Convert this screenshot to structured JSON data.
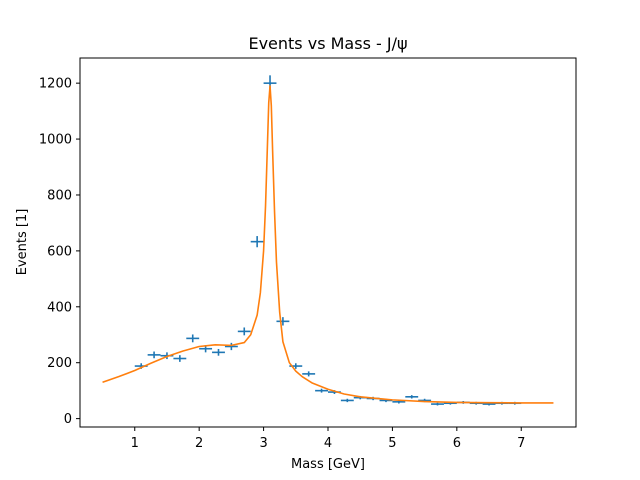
{
  "chart_data": {
    "type": "scatter",
    "title": "Events vs Mass - J/ψ",
    "xlabel": "Mass [GeV]",
    "ylabel": "Events [1]",
    "xlim": [
      0.15,
      7.85
    ],
    "ylim": [
      -30,
      1290
    ],
    "xticks": [
      1,
      2,
      3,
      4,
      5,
      6,
      7
    ],
    "yticks": [
      0,
      200,
      400,
      600,
      800,
      1000,
      1200
    ],
    "grid": false,
    "legend": "none",
    "colors": {
      "data": "#1f77b4",
      "fit": "#ff7f0e"
    },
    "series": [
      {
        "kind": "errorbar",
        "x_halfwidth": 0.1,
        "x": [
          1.1,
          1.3,
          1.5,
          1.7,
          1.9,
          2.1,
          2.3,
          2.5,
          2.7,
          2.9,
          3.1,
          3.3,
          3.5,
          3.7,
          3.9,
          4.1,
          4.3,
          4.5,
          4.7,
          4.9,
          5.1,
          5.3,
          5.5,
          5.7,
          5.9,
          6.1,
          6.3,
          6.5,
          6.7,
          6.9
        ],
        "y": [
          188,
          228,
          225,
          215,
          287,
          250,
          237,
          258,
          312,
          633,
          1200,
          348,
          188,
          160,
          100,
          95,
          65,
          75,
          72,
          65,
          60,
          78,
          65,
          52,
          55,
          58,
          55,
          52,
          55,
          55
        ],
        "yerr": [
          10,
          12,
          12,
          12,
          14,
          13,
          12,
          13,
          14,
          20,
          28,
          15,
          10,
          9,
          7,
          7,
          6,
          6,
          6,
          6,
          6,
          6,
          6,
          5,
          5,
          5,
          5,
          5,
          5,
          5
        ]
      },
      {
        "kind": "line",
        "x": [
          0.5,
          0.75,
          1.0,
          1.25,
          1.5,
          1.75,
          2.0,
          2.25,
          2.5,
          2.7,
          2.8,
          2.9,
          2.95,
          3.0,
          3.03,
          3.06,
          3.08,
          3.1,
          3.12,
          3.14,
          3.17,
          3.2,
          3.25,
          3.3,
          3.4,
          3.5,
          3.6,
          3.75,
          4.0,
          4.25,
          4.5,
          5.0,
          5.5,
          6.0,
          6.5,
          7.0,
          7.5
        ],
        "y": [
          130,
          150,
          172,
          198,
          222,
          242,
          258,
          264,
          262,
          272,
          300,
          370,
          450,
          600,
          760,
          980,
          1130,
          1190,
          1120,
          960,
          740,
          560,
          380,
          275,
          200,
          170,
          150,
          128,
          105,
          88,
          78,
          67,
          61,
          58,
          57,
          56,
          56
        ]
      }
    ]
  }
}
